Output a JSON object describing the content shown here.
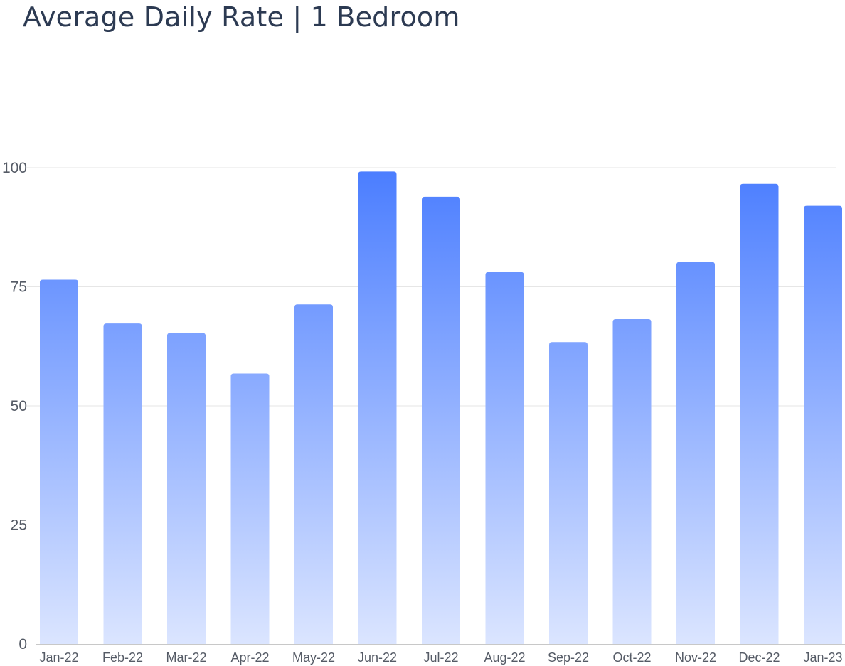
{
  "chart_data": {
    "type": "bar",
    "title": "Average Daily Rate | 1 Bedroom",
    "xlabel": "",
    "ylabel": "",
    "categories": [
      "Jan-22",
      "Feb-22",
      "Mar-22",
      "Apr-22",
      "May-22",
      "Jun-22",
      "Jul-22",
      "Aug-22",
      "Sep-22",
      "Oct-22",
      "Nov-22",
      "Dec-22",
      "Jan-23"
    ],
    "values": [
      76.5,
      67.3,
      65.3,
      56.8,
      71.3,
      99.2,
      93.9,
      78.1,
      63.4,
      68.2,
      80.2,
      96.6,
      92.0
    ],
    "ylim": [
      0,
      100
    ],
    "yticks": [
      0,
      25,
      50,
      75,
      100
    ],
    "grid": true,
    "legend": "none",
    "colors": {
      "bar_top": "#4a7dff",
      "bar_bottom": "#dbe5ff",
      "grid": "#e6e6e6",
      "axis": "#c8c8c8",
      "title": "#2c3a52",
      "tick": "#555b66"
    }
  }
}
